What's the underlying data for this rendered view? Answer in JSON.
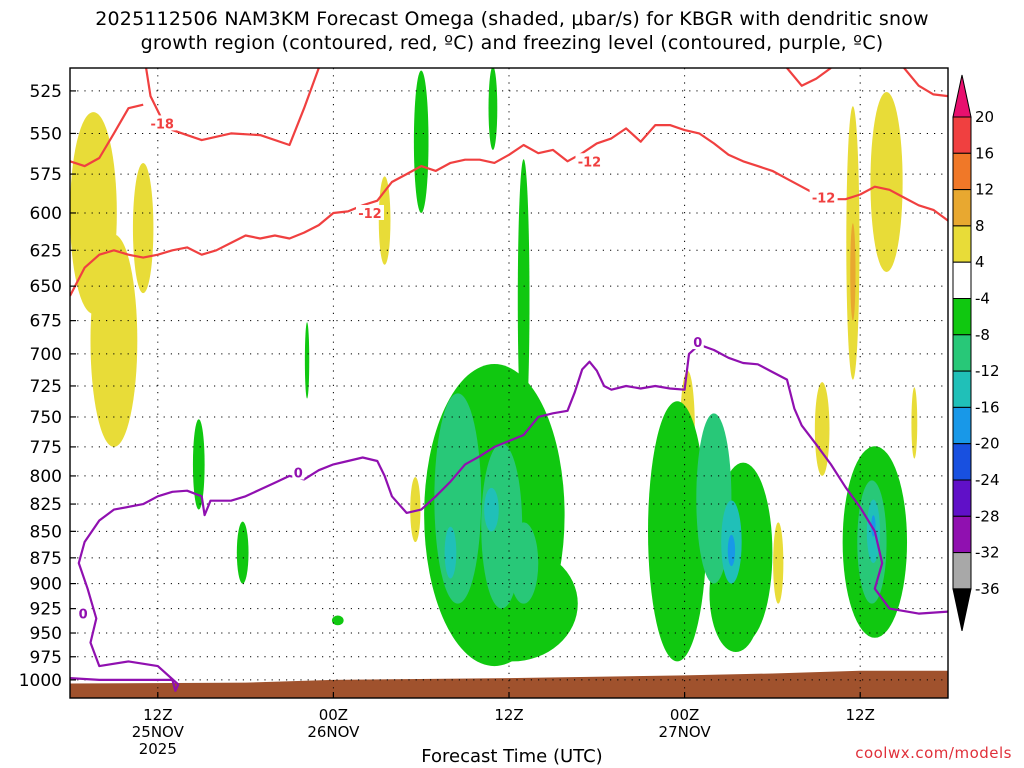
{
  "chart_data": {
    "type": "heatmap",
    "title_line1": "2025112506 NAM3KM Forecast Omega (shaded, μbar/s) for KBGR with dendritic snow",
    "title_line2": "growth region (contoured, red, ºC) and freezing level (contoured, purple, ºC)",
    "xlabel": "Forecast Time (UTC)",
    "credit": "coolwx.com/models",
    "y_ticks": [
      "525",
      "550",
      "575",
      "600",
      "625",
      "650",
      "675",
      "700",
      "725",
      "750",
      "775",
      "800",
      "825",
      "850",
      "875",
      "900",
      "925",
      "950",
      "975",
      "1000"
    ],
    "y_range_hpa": [
      512,
      1020
    ],
    "x_range_hours": [
      0,
      60
    ],
    "x_ticks": [
      {
        "hour": 6,
        "lines": [
          "12Z",
          "25NOV",
          "2025"
        ]
      },
      {
        "hour": 18,
        "lines": [
          "00Z",
          "26NOV"
        ]
      },
      {
        "hour": 30,
        "lines": [
          "12Z"
        ]
      },
      {
        "hour": 42,
        "lines": [
          "00Z",
          "27NOV"
        ]
      },
      {
        "hour": 54,
        "lines": [
          "12Z"
        ]
      }
    ],
    "colorbar": {
      "labels": [
        "20",
        "16",
        "12",
        "8",
        "4",
        "-4",
        "-8",
        "-12",
        "-16",
        "-20",
        "-24",
        "-28",
        "-32",
        "-36"
      ],
      "colors": [
        "#e8106e",
        "#f04040",
        "#f07828",
        "#e8a830",
        "#e8dc38",
        "#ffffff",
        "#10c810",
        "#28c878",
        "#20c0b8",
        "#1898e8",
        "#1850e0",
        "#6010c8",
        "#9010b0",
        "#a8a8a8",
        "#000000"
      ]
    },
    "colors": {
      "weak_rise": "#10c810",
      "mod_rise": "#28c878",
      "strong_rise": "#20c0b8",
      "peak_rise": "#1898e8",
      "sink": "#e8dc38",
      "sink_strong": "#e8a830",
      "dgz_line": "#f04040",
      "freezing_line": "#9010b0",
      "ground": "#a0522d"
    },
    "contour_labels": [
      {
        "text": "-18",
        "hour": 6.3,
        "hpa": 544,
        "line": "dgz"
      },
      {
        "text": "-12",
        "hour": 20.5,
        "hpa": 600,
        "line": "dgz"
      },
      {
        "text": "-12",
        "hour": 35.5,
        "hpa": 567,
        "line": "dgz"
      },
      {
        "text": "-12",
        "hour": 51.5,
        "hpa": 590,
        "line": "dgz"
      },
      {
        "text": "0",
        "hour": 15.6,
        "hpa": 797,
        "line": "frz"
      },
      {
        "text": "0",
        "hour": 0.9,
        "hpa": 930,
        "line": "frz"
      },
      {
        "text": "0",
        "hour": 42.9,
        "hpa": 691,
        "line": "frz"
      }
    ],
    "series": [
      {
        "name": "dgz_upper",
        "points": [
          [
            5.2,
            512
          ],
          [
            5.5,
            528
          ],
          [
            6.2,
            540
          ],
          [
            7,
            548
          ],
          [
            9,
            554
          ],
          [
            11,
            550
          ],
          [
            13,
            551
          ],
          [
            15,
            557
          ],
          [
            16,
            535
          ],
          [
            17,
            512
          ]
        ]
      },
      {
        "name": "dgz_mid",
        "points": [
          [
            0,
            567
          ],
          [
            1,
            570
          ],
          [
            2,
            565
          ],
          [
            3,
            550
          ],
          [
            4,
            535
          ],
          [
            5,
            533
          ]
        ]
      },
      {
        "name": "dgz_lower",
        "points": [
          [
            0,
            657
          ],
          [
            1,
            637
          ],
          [
            2,
            628
          ],
          [
            3,
            625
          ],
          [
            4,
            628
          ],
          [
            5,
            630
          ],
          [
            6,
            628
          ],
          [
            7,
            625
          ],
          [
            8,
            623
          ],
          [
            9,
            628
          ],
          [
            10,
            625
          ],
          [
            11,
            620
          ],
          [
            12,
            615
          ],
          [
            13,
            617
          ],
          [
            14,
            615
          ],
          [
            15,
            617
          ],
          [
            16,
            613
          ],
          [
            17,
            608
          ],
          [
            18,
            600
          ],
          [
            19,
            599
          ],
          [
            20,
            595
          ],
          [
            21,
            592
          ],
          [
            22,
            580
          ],
          [
            23,
            575
          ],
          [
            24,
            570
          ],
          [
            25,
            573
          ],
          [
            26,
            568
          ],
          [
            27,
            566
          ],
          [
            28,
            566
          ],
          [
            29,
            568
          ],
          [
            30,
            563
          ],
          [
            31,
            557
          ],
          [
            32,
            562
          ],
          [
            33,
            560
          ],
          [
            34,
            567
          ],
          [
            35,
            562
          ],
          [
            36,
            556
          ],
          [
            37,
            553
          ],
          [
            38,
            547
          ],
          [
            39,
            555
          ],
          [
            40,
            545
          ],
          [
            41,
            545
          ],
          [
            42,
            548
          ],
          [
            43,
            550
          ],
          [
            44,
            556
          ],
          [
            45,
            563
          ],
          [
            46,
            567
          ],
          [
            47,
            570
          ],
          [
            48,
            573
          ],
          [
            49,
            578
          ],
          [
            50,
            583
          ],
          [
            51,
            588
          ],
          [
            52,
            591
          ],
          [
            53,
            591
          ],
          [
            54,
            588
          ],
          [
            55,
            583
          ],
          [
            56,
            585
          ],
          [
            57,
            590
          ],
          [
            58,
            595
          ],
          [
            59,
            598
          ],
          [
            60,
            605
          ]
        ]
      },
      {
        "name": "dgz_top_right",
        "points": [
          [
            49,
            512
          ],
          [
            50,
            522
          ],
          [
            51,
            518
          ],
          [
            52,
            512
          ]
        ]
      },
      {
        "name": "dgz_top_far",
        "points": [
          [
            57,
            512
          ],
          [
            58,
            522
          ],
          [
            59,
            527
          ],
          [
            60,
            528
          ]
        ]
      },
      {
        "name": "freezing",
        "points": [
          [
            0,
            998
          ],
          [
            2,
            1000
          ],
          [
            4,
            1000
          ],
          [
            7,
            1000
          ],
          [
            7.2,
            1012
          ],
          [
            7.4,
            1005
          ],
          [
            6,
            985
          ],
          [
            4,
            980
          ],
          [
            2,
            985
          ],
          [
            1.4,
            960
          ],
          [
            1.8,
            935
          ],
          [
            1.2,
            905
          ],
          [
            0.6,
            880
          ],
          [
            1,
            860
          ],
          [
            2,
            840
          ],
          [
            3,
            830
          ],
          [
            5,
            825
          ],
          [
            6,
            818
          ],
          [
            7,
            814
          ],
          [
            8,
            813
          ],
          [
            9,
            818
          ],
          [
            9.2,
            835
          ],
          [
            9.6,
            822
          ],
          [
            11,
            822
          ],
          [
            12,
            818
          ],
          [
            13,
            812
          ],
          [
            14,
            806
          ],
          [
            15,
            800
          ],
          [
            16,
            803
          ],
          [
            17,
            795
          ],
          [
            18,
            790
          ],
          [
            19,
            787
          ],
          [
            20,
            784
          ],
          [
            21,
            787
          ],
          [
            21.5,
            800
          ],
          [
            22,
            818
          ],
          [
            23,
            833
          ],
          [
            24,
            830
          ],
          [
            25,
            818
          ],
          [
            26,
            805
          ],
          [
            27,
            790
          ],
          [
            28,
            783
          ],
          [
            29,
            775
          ],
          [
            30,
            770
          ],
          [
            31,
            765
          ],
          [
            32,
            750
          ],
          [
            33,
            747
          ],
          [
            34,
            745
          ],
          [
            34.5,
            730
          ],
          [
            35,
            712
          ],
          [
            35.5,
            706
          ],
          [
            36,
            713
          ],
          [
            36.5,
            725
          ],
          [
            37,
            728
          ],
          [
            38,
            725
          ],
          [
            39,
            727
          ],
          [
            40,
            725
          ],
          [
            41,
            727
          ],
          [
            42,
            728
          ],
          [
            42.3,
            700
          ],
          [
            43,
            693
          ],
          [
            44,
            697
          ],
          [
            45,
            703
          ],
          [
            46,
            707
          ],
          [
            47,
            708
          ],
          [
            48,
            714
          ],
          [
            49,
            720
          ],
          [
            49.5,
            743
          ],
          [
            50,
            757
          ],
          [
            51,
            773
          ],
          [
            52,
            790
          ],
          [
            53,
            810
          ],
          [
            54,
            828
          ],
          [
            55,
            850
          ],
          [
            55.5,
            880
          ],
          [
            55,
            905
          ],
          [
            56,
            925
          ],
          [
            58,
            930
          ],
          [
            60,
            928
          ]
        ]
      }
    ]
  }
}
